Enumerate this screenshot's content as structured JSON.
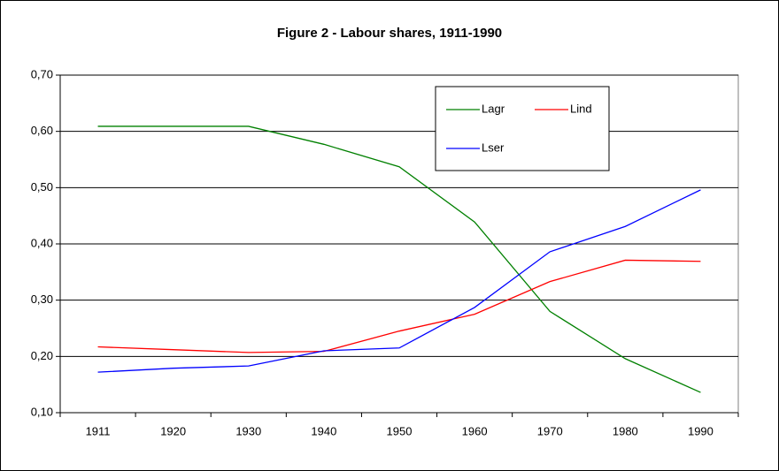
{
  "chart_data": {
    "type": "line",
    "title": "Figure 2 - Labour shares, 1911-1990",
    "categories": [
      "1911",
      "1920",
      "1930",
      "1940",
      "1950",
      "1960",
      "1970",
      "1980",
      "1990"
    ],
    "series": [
      {
        "name": "Lagr",
        "color": "#008000",
        "values": [
          0.609,
          0.609,
          0.609,
          0.577,
          0.537,
          0.439,
          0.28,
          0.196,
          0.136
        ]
      },
      {
        "name": "Lind",
        "color": "#ff0000",
        "values": [
          0.217,
          0.212,
          0.207,
          0.209,
          0.245,
          0.275,
          0.333,
          0.371,
          0.369
        ]
      },
      {
        "name": "Lser",
        "color": "#0000ff",
        "values": [
          0.172,
          0.179,
          0.183,
          0.21,
          0.215,
          0.287,
          0.386,
          0.431,
          0.496
        ]
      }
    ],
    "ylim": [
      0.1,
      0.7
    ],
    "yticks": [
      {
        "value": 0.1,
        "label": "0,10"
      },
      {
        "value": 0.2,
        "label": "0,20"
      },
      {
        "value": 0.3,
        "label": "0,30"
      },
      {
        "value": 0.4,
        "label": "0,40"
      },
      {
        "value": 0.5,
        "label": "0,50"
      },
      {
        "value": 0.6,
        "label": "0,60"
      },
      {
        "value": 0.7,
        "label": "0,70"
      }
    ],
    "grid": true
  }
}
